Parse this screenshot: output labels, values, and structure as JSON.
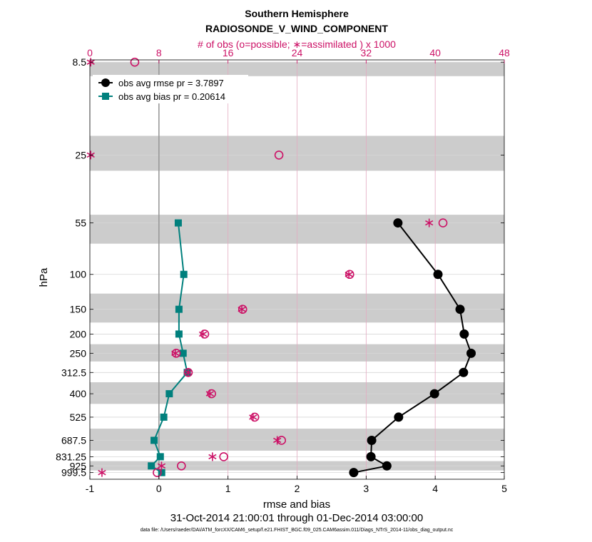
{
  "chart_data": {
    "type": "line",
    "title": "Southern Hemisphere",
    "subtitle": "RADIOSONDE_V_WIND_COMPONENT",
    "top_axis_label": "# of obs (o=possible; ∗=assimilated ) x 1000",
    "xlabel": "rmse and bias",
    "ylabel": "hPa",
    "date_range": "31-Oct-2014 21:00:01 through 01-Dec-2014 03:00:00",
    "footnote": "data file: /Users/raeder/DAI/ATM_forcXX/CAM6_setup/f.e21.FHIST_BGC.f09_025.CAM6assim.011/Diags_NTrS_2014-11/obs_diag_output.nc",
    "xlim": [
      -1,
      5
    ],
    "top_xlim": [
      0,
      48
    ],
    "x_ticks": [
      "-1",
      "0",
      "1",
      "2",
      "3",
      "4",
      "5"
    ],
    "top_ticks": [
      "0",
      "8",
      "16",
      "24",
      "32",
      "40",
      "48"
    ],
    "y_axis": {
      "scale": "log",
      "reversed": true,
      "range": [
        8.28,
        1080
      ],
      "tick_labels": [
        "8.5",
        "25",
        "55",
        "100",
        "150",
        "200",
        "250",
        "312.5",
        "400",
        "525",
        "687.5",
        "831.25",
        "925",
        "999.5"
      ]
    },
    "levels": [
      8.5,
      25,
      55,
      100,
      150,
      200,
      250,
      312.5,
      400,
      525,
      687.5,
      831.25,
      925,
      999.5
    ],
    "shaded_bands": [
      [
        8.5,
        10
      ],
      [
        20,
        30
      ],
      [
        50,
        70
      ],
      [
        125,
        175
      ],
      [
        225,
        275
      ],
      [
        350,
        450
      ],
      [
        600,
        775
      ],
      [
        875,
        975
      ]
    ],
    "series": [
      {
        "name": "obs avg rmse pr = 3.7897",
        "color": "#000000",
        "points": [
          [
            3.46,
            55
          ],
          [
            4.04,
            100
          ],
          [
            4.36,
            150
          ],
          [
            4.42,
            200
          ],
          [
            4.52,
            250
          ],
          [
            4.41,
            312.5
          ],
          [
            3.99,
            400
          ],
          [
            3.47,
            525
          ],
          [
            3.08,
            687.5
          ],
          [
            3.07,
            831.25
          ],
          [
            3.3,
            925
          ],
          [
            2.82,
            999.5
          ]
        ]
      },
      {
        "name": "obs avg bias pr = 0.20614",
        "color": "#00807d",
        "points": [
          [
            0.28,
            55
          ],
          [
            0.36,
            100
          ],
          [
            0.29,
            150
          ],
          [
            0.29,
            200
          ],
          [
            0.35,
            250
          ],
          [
            0.41,
            312.5
          ],
          [
            0.15,
            400
          ],
          [
            0.07,
            525
          ],
          [
            -0.07,
            687.5
          ],
          [
            0.02,
            831.25
          ],
          [
            -0.11,
            925
          ],
          [
            0.04,
            999.5
          ]
        ]
      }
    ],
    "obs_possible": {
      "marker": "circle",
      "color": "#cc1166",
      "points": [
        [
          5.2,
          8.5
        ],
        [
          21.9,
          25
        ],
        [
          40.9,
          55
        ],
        [
          30.1,
          100
        ],
        [
          17.7,
          150
        ],
        [
          13.3,
          200
        ],
        [
          10.0,
          250
        ],
        [
          11.4,
          312.5
        ],
        [
          14.1,
          400
        ],
        [
          19.1,
          525
        ],
        [
          22.2,
          687.5
        ],
        [
          15.5,
          831.25
        ],
        [
          10.6,
          925
        ],
        [
          7.8,
          999.5
        ]
      ]
    },
    "obs_assimilated": {
      "marker": "asterisk",
      "color": "#cc1166",
      "points": [
        [
          0.1,
          8.5
        ],
        [
          0.1,
          25
        ],
        [
          39.3,
          55
        ],
        [
          30.0,
          100
        ],
        [
          17.6,
          150
        ],
        [
          13.1,
          200
        ],
        [
          9.9,
          250
        ],
        [
          11.4,
          312.5
        ],
        [
          13.9,
          400
        ],
        [
          18.9,
          525
        ],
        [
          21.7,
          687.5
        ],
        [
          14.2,
          831.25
        ],
        [
          8.3,
          925
        ],
        [
          1.4,
          999.5
        ]
      ]
    },
    "zero_line": 0,
    "grid": true,
    "legend_position": "top-left"
  },
  "colors": {
    "rmse": "#000000",
    "bias": "#00807d",
    "obs": "#cc1166",
    "band": "#cccccc",
    "top_axis": "#cc1166"
  }
}
